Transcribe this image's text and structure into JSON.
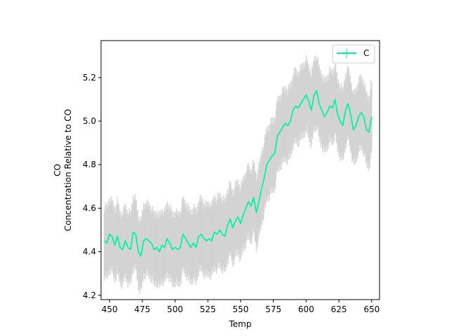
{
  "chart_data": {
    "type": "line",
    "xlabel": "Temp",
    "ylabel_lines": [
      "CO",
      "Concentration Relative to CO"
    ],
    "xlim": [
      443.5,
      656
    ],
    "ylim": [
      4.18,
      5.37
    ],
    "x_ticks": [
      450,
      475,
      500,
      525,
      550,
      575,
      600,
      625,
      650
    ],
    "x_tick_labels": [
      "450",
      "475",
      "500",
      "525",
      "550",
      "575",
      "600",
      "625",
      "650"
    ],
    "y_ticks": [
      4.2,
      4.4,
      4.6,
      4.8,
      5.0,
      5.2
    ],
    "y_tick_labels": [
      "4.2",
      "4.4",
      "4.6",
      "4.8",
      "5.0",
      "5.2"
    ],
    "legend_position": "top-right",
    "grid": false,
    "series": [
      {
        "name": "C",
        "color": "#00f5a0",
        "error_color": "#d3d3d3",
        "error_halfwidth": 0.16,
        "x": [
          446,
          448,
          450,
          452,
          454,
          456,
          458,
          460,
          462,
          464,
          466,
          468,
          470,
          472,
          474,
          476,
          478,
          480,
          482,
          484,
          486,
          488,
          490,
          492,
          494,
          496,
          498,
          500,
          502,
          504,
          506,
          508,
          510,
          512,
          514,
          516,
          518,
          520,
          522,
          524,
          526,
          528,
          530,
          532,
          534,
          536,
          538,
          540,
          542,
          544,
          546,
          548,
          550,
          552,
          554,
          556,
          558,
          560,
          562,
          564,
          566,
          568,
          570,
          572,
          574,
          576,
          578,
          580,
          582,
          584,
          586,
          588,
          590,
          592,
          594,
          596,
          598,
          600,
          602,
          604,
          606,
          608,
          610,
          612,
          614,
          616,
          618,
          620,
          622,
          624,
          626,
          628,
          630,
          632,
          634,
          636,
          638,
          640,
          642,
          644,
          646,
          648,
          650
        ],
        "values": [
          4.45,
          4.44,
          4.48,
          4.47,
          4.43,
          4.47,
          4.42,
          4.41,
          4.45,
          4.42,
          4.41,
          4.49,
          4.48,
          4.4,
          4.38,
          4.45,
          4.46,
          4.45,
          4.44,
          4.41,
          4.42,
          4.4,
          4.43,
          4.42,
          4.46,
          4.44,
          4.41,
          4.42,
          4.41,
          4.42,
          4.48,
          4.46,
          4.44,
          4.42,
          4.44,
          4.42,
          4.47,
          4.48,
          4.46,
          4.45,
          4.46,
          4.45,
          4.49,
          4.48,
          4.5,
          4.48,
          4.47,
          4.52,
          4.55,
          4.51,
          4.54,
          4.56,
          4.53,
          4.57,
          4.6,
          4.63,
          4.61,
          4.65,
          4.58,
          4.63,
          4.69,
          4.74,
          4.8,
          4.82,
          4.84,
          4.85,
          4.93,
          4.95,
          4.97,
          4.99,
          4.98,
          5.0,
          5.05,
          5.07,
          5.06,
          5.08,
          5.1,
          5.12,
          5.09,
          5.05,
          5.12,
          5.14,
          5.08,
          5.05,
          5.02,
          5.04,
          5.07,
          5.06,
          5.1,
          5.03,
          5.0,
          4.98,
          5.05,
          5.08,
          5.03,
          4.96,
          4.98,
          5.02,
          5.04,
          5.02,
          4.96,
          4.95,
          5.02
        ]
      }
    ]
  }
}
